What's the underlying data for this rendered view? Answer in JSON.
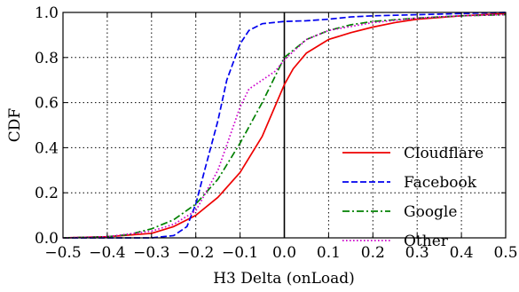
{
  "chart_data": {
    "type": "line",
    "xlabel": "H3 Delta (onLoad)",
    "ylabel": "CDF",
    "xlim": [
      -0.5,
      0.5
    ],
    "ylim": [
      0.0,
      1.0
    ],
    "x_ticks": [
      -0.5,
      -0.4,
      -0.3,
      -0.2,
      -0.1,
      0.0,
      0.1,
      0.2,
      0.3,
      0.4,
      0.5
    ],
    "x_tick_labels": [
      "−0.5",
      "−0.4",
      "−0.3",
      "−0.2",
      "−0.1",
      "0.0",
      "0.1",
      "0.2",
      "0.3",
      "0.4",
      "0.5"
    ],
    "y_ticks": [
      0.0,
      0.2,
      0.4,
      0.6,
      0.8,
      1.0
    ],
    "y_tick_labels": [
      "0.0",
      "0.2",
      "0.4",
      "0.6",
      "0.8",
      "1.0"
    ],
    "grid": true,
    "vertical_reference_line_x": 0.0,
    "legend_position": "lower right",
    "series": [
      {
        "name": "Cloudflare",
        "color": "#ee0000",
        "style": "solid",
        "x": [
          -0.5,
          -0.4,
          -0.3,
          -0.25,
          -0.2,
          -0.15,
          -0.1,
          -0.05,
          0.0,
          0.02,
          0.05,
          0.1,
          0.15,
          0.2,
          0.25,
          0.3,
          0.4,
          0.5
        ],
        "y": [
          0.0,
          0.005,
          0.02,
          0.05,
          0.1,
          0.18,
          0.29,
          0.45,
          0.68,
          0.75,
          0.82,
          0.88,
          0.91,
          0.935,
          0.955,
          0.97,
          0.985,
          0.995
        ]
      },
      {
        "name": "Facebook",
        "color": "#0000ee",
        "style": "dashed",
        "x": [
          -0.5,
          -0.3,
          -0.25,
          -0.22,
          -0.2,
          -0.18,
          -0.15,
          -0.13,
          -0.1,
          -0.08,
          -0.05,
          0.0,
          0.05,
          0.1,
          0.15,
          0.2,
          0.3,
          0.4,
          0.5
        ],
        "y": [
          0.0,
          0.0,
          0.01,
          0.05,
          0.15,
          0.3,
          0.52,
          0.7,
          0.86,
          0.92,
          0.95,
          0.96,
          0.963,
          0.97,
          0.98,
          0.985,
          0.99,
          0.995,
          1.0
        ]
      },
      {
        "name": "Google",
        "color": "#008000",
        "style": "dashdot",
        "x": [
          -0.5,
          -0.4,
          -0.35,
          -0.3,
          -0.25,
          -0.2,
          -0.15,
          -0.1,
          -0.05,
          0.0,
          0.05,
          0.1,
          0.15,
          0.2,
          0.3,
          0.4,
          0.5
        ],
        "y": [
          0.0,
          0.005,
          0.015,
          0.04,
          0.08,
          0.15,
          0.26,
          0.42,
          0.6,
          0.8,
          0.88,
          0.92,
          0.945,
          0.96,
          0.975,
          0.985,
          0.99
        ]
      },
      {
        "name": "Other",
        "color": "#cc00cc",
        "style": "dotted",
        "x": [
          -0.5,
          -0.4,
          -0.3,
          -0.25,
          -0.2,
          -0.15,
          -0.1,
          -0.08,
          -0.05,
          -0.02,
          0.0,
          0.05,
          0.1,
          0.2,
          0.3,
          0.4,
          0.5
        ],
        "y": [
          0.0,
          0.005,
          0.03,
          0.06,
          0.12,
          0.3,
          0.58,
          0.66,
          0.7,
          0.74,
          0.79,
          0.88,
          0.92,
          0.955,
          0.975,
          0.985,
          0.99
        ]
      }
    ]
  }
}
